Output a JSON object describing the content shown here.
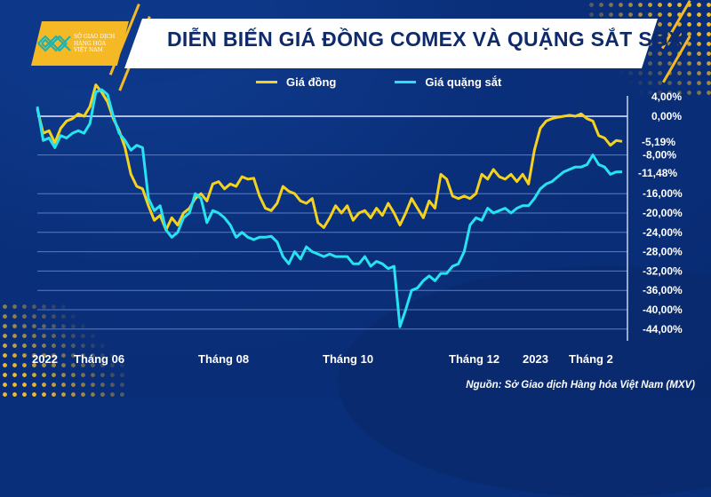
{
  "header": {
    "title": "DIỄN BIẾN GIÁ ĐỒNG COMEX VÀ QUẶNG SẮT SGX",
    "logo_text": "SỞ GIAO DỊCH\nHÀNG HÓA\nVIỆT NAM"
  },
  "legend": {
    "copper_label": "Giá đồng",
    "iron_label": "Giá quặng sắt"
  },
  "colors": {
    "background": "#0a2f7a",
    "copper": "#f5d21e",
    "iron": "#27e3f2",
    "accent": "#f5b926",
    "grid": "#5a7cc4"
  },
  "annotations": {
    "copper_last": "-5,19%",
    "iron_last": "-11,48%"
  },
  "source": "Nguồn: Sở Giao dịch Hàng hóa Việt Nam (MXV)",
  "chart_data": {
    "type": "line",
    "title": "DIỄN BIẾN GIÁ ĐỒNG COMEX VÀ QUẶNG SẮT SGX",
    "xlabel": "",
    "ylabel": "",
    "ylim": [
      -44,
      4
    ],
    "y_ticks": [
      "4,00%",
      "0,00%",
      "-8,00%",
      "-16,00%",
      "-20,00%",
      "-24,00%",
      "-28,00%",
      "-32,00%",
      "-36,00%",
      "-40,00%",
      "-44,00%"
    ],
    "x_tick_labels": [
      "2022",
      "Tháng 06",
      "Tháng 08",
      "Tháng 10",
      "Tháng 12",
      "2023",
      "Tháng 2"
    ],
    "x_tick_positions": [
      0.02,
      0.12,
      0.32,
      0.52,
      0.72,
      0.84,
      0.95
    ],
    "grid": true,
    "legend_position": "top",
    "x": [
      0,
      0.01,
      0.02,
      0.03,
      0.04,
      0.05,
      0.06,
      0.07,
      0.08,
      0.09,
      0.1,
      0.11,
      0.12,
      0.13,
      0.14,
      0.15,
      0.16,
      0.17,
      0.18,
      0.19,
      0.2,
      0.21,
      0.22,
      0.23,
      0.24,
      0.25,
      0.26,
      0.27,
      0.28,
      0.29,
      0.3,
      0.31,
      0.32,
      0.33,
      0.34,
      0.35,
      0.36,
      0.37,
      0.38,
      0.39,
      0.4,
      0.41,
      0.42,
      0.43,
      0.44,
      0.45,
      0.46,
      0.47,
      0.48,
      0.49,
      0.5,
      0.51,
      0.52,
      0.53,
      0.54,
      0.55,
      0.56,
      0.57,
      0.58,
      0.59,
      0.6,
      0.61,
      0.62,
      0.63,
      0.64,
      0.65,
      0.66,
      0.67,
      0.68,
      0.69,
      0.7,
      0.71,
      0.72,
      0.73,
      0.74,
      0.75,
      0.76,
      0.77,
      0.78,
      0.79,
      0.8,
      0.81,
      0.82,
      0.83,
      0.84,
      0.85,
      0.86,
      0.87,
      0.88,
      0.89,
      0.9,
      0.91,
      0.92,
      0.93,
      0.94,
      0.95,
      0.96,
      0.97,
      0.98,
      0.99,
      1.0
    ],
    "series": [
      {
        "name": "Giá đồng",
        "color": "#f5d21e",
        "last_value": -5.19,
        "values": [
          1.5,
          -3.5,
          -3.0,
          -5.5,
          -2.5,
          -1.0,
          -0.5,
          0.5,
          0.0,
          2.0,
          6.5,
          5.0,
          3.0,
          -0.5,
          -3.0,
          -6.5,
          -12.0,
          -14.5,
          -15.0,
          -18.5,
          -21.5,
          -20.5,
          -23.5,
          -21.0,
          -22.5,
          -20.0,
          -19.0,
          -17.0,
          -16.0,
          -17.5,
          -14.0,
          -13.5,
          -15.0,
          -14.0,
          -14.5,
          -12.5,
          -13.0,
          -12.8,
          -16.5,
          -19.0,
          -19.5,
          -18.0,
          -14.5,
          -15.5,
          -16.0,
          -17.5,
          -18.0,
          -17.0,
          -22.0,
          -23.0,
          -21.0,
          -18.5,
          -20.0,
          -18.5,
          -21.5,
          -20.0,
          -19.5,
          -21.0,
          -19.0,
          -20.5,
          -18.0,
          -20.0,
          -22.5,
          -20.0,
          -17.0,
          -19.0,
          -21.0,
          -17.5,
          -19.0,
          -12.0,
          -13.0,
          -16.5,
          -17.0,
          -16.5,
          -17.0,
          -16.0,
          -12.0,
          -13.0,
          -11.0,
          -12.5,
          -13.0,
          -12.0,
          -13.5,
          -12.0,
          -14.0,
          -7.0,
          -2.5,
          -1.0,
          -0.5,
          -0.2,
          0.0,
          0.2,
          0.0,
          0.5,
          -0.5,
          -1.0,
          -4.0,
          -4.5,
          -6.0,
          -5.0,
          -5.19
        ]
      },
      {
        "name": "Giá quặng sắt",
        "color": "#27e3f2",
        "last_value": -11.48,
        "values": [
          2.0,
          -5.0,
          -4.5,
          -6.5,
          -4.0,
          -4.5,
          -3.5,
          -3.0,
          -3.5,
          -1.5,
          5.0,
          5.5,
          4.5,
          0.0,
          -3.5,
          -5.0,
          -7.0,
          -6.0,
          -6.5,
          -17.0,
          -19.5,
          -18.5,
          -23.5,
          -25.0,
          -24.0,
          -21.0,
          -20.0,
          -16.0,
          -17.0,
          -22.0,
          -19.5,
          -20.0,
          -21.0,
          -22.5,
          -25.0,
          -24.0,
          -25.0,
          -25.5,
          -25.0,
          -25.0,
          -24.8,
          -26.0,
          -29.0,
          -30.5,
          -28.0,
          -29.5,
          -27.0,
          -28.0,
          -28.5,
          -29.0,
          -28.5,
          -29.0,
          -29.0,
          -29.0,
          -30.5,
          -30.5,
          -29.0,
          -31.0,
          -30.0,
          -30.5,
          -31.5,
          -31.0,
          -43.5,
          -40.0,
          -36.0,
          -35.5,
          -34.0,
          -33.0,
          -34.0,
          -32.5,
          -32.5,
          -31.0,
          -30.5,
          -28.0,
          -22.5,
          -21.0,
          -21.5,
          -19.0,
          -20.0,
          -19.5,
          -19.0,
          -20.0,
          -19.0,
          -18.5,
          -18.5,
          -17.0,
          -15.0,
          -14.0,
          -13.5,
          -12.5,
          -11.5,
          -11.0,
          -10.5,
          -10.5,
          -10.0,
          -8.0,
          -10.0,
          -10.5,
          -12.0,
          -11.5,
          -11.48
        ]
      }
    ]
  }
}
